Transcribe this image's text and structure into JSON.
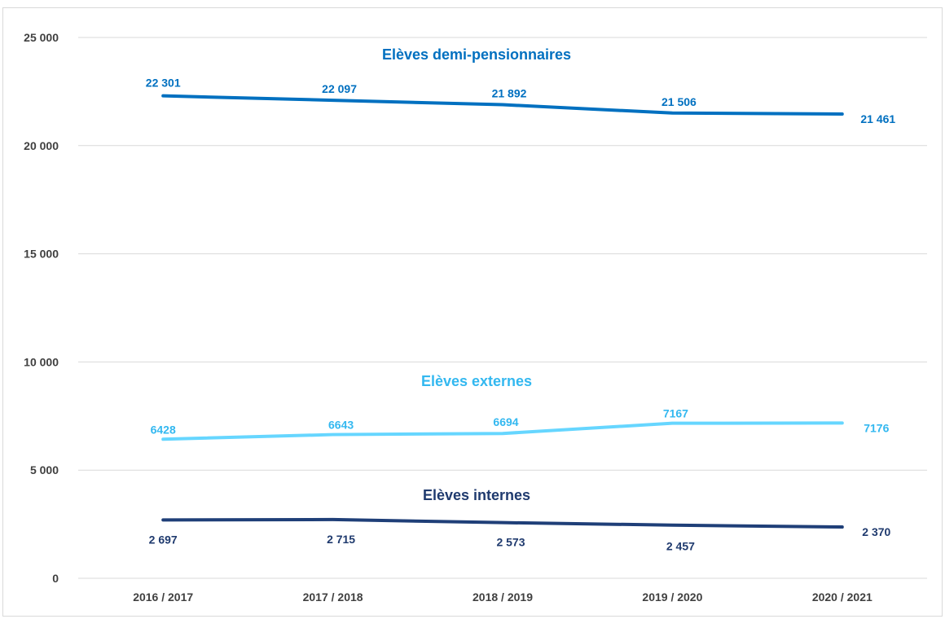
{
  "chart_data": {
    "type": "line",
    "categories": [
      "2016 / 2017",
      "2017 / 2018",
      "2018 / 2019",
      "2019 / 2020",
      "2020 / 2021"
    ],
    "ylim": [
      0,
      25000
    ],
    "yticks": [
      0,
      5000,
      10000,
      15000,
      20000,
      25000
    ],
    "ytick_labels": [
      "0",
      "5 000",
      "10 000",
      "15 000",
      "20 000",
      "25 000"
    ],
    "grid": true,
    "series": [
      {
        "name": "Elèves demi-pensionnaires",
        "values": [
          22301,
          22097,
          21892,
          21506,
          21461
        ],
        "labels": [
          "22 301",
          "22 097",
          "21 892",
          "21 506",
          "21 461"
        ],
        "color": "#0070c0",
        "label_color": "#0070c0"
      },
      {
        "name": "Elèves externes",
        "values": [
          6428,
          6643,
          6694,
          7167,
          7176
        ],
        "labels": [
          "6428",
          "6643",
          "6694",
          "7167",
          "7176"
        ],
        "color": "#66d6ff",
        "label_color": "#33b8f0"
      },
      {
        "name": "Elèves internes",
        "values": [
          2697,
          2715,
          2573,
          2457,
          2370
        ],
        "labels": [
          "2 697",
          "2 715",
          "2 573",
          "2 457",
          "2 370"
        ],
        "color": "#1f3f78",
        "label_color": "#1f3a6e"
      }
    ]
  }
}
